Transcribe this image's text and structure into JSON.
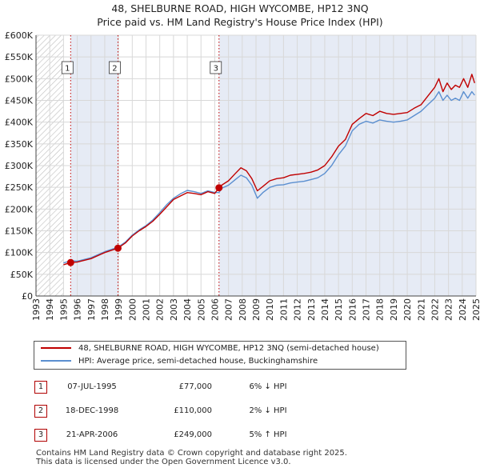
{
  "title": {
    "line1": "48, SHELBURNE ROAD, HIGH WYCOMBE, HP12 3NQ",
    "line2": "Price paid vs. HM Land Registry's House Price Index (HPI)"
  },
  "colors": {
    "price": "#c00000",
    "hpi": "#5b8fd0",
    "shade": "#e6ebf5",
    "hatch": "#bdbdbd",
    "grid": "#d8d8d8",
    "marker_border": "#b00000"
  },
  "chart_data": {
    "type": "line",
    "title": "Price paid vs. HM Land Registry's House Price Index (HPI)",
    "xlim": [
      1993,
      2025
    ],
    "ylim": [
      0,
      600000
    ],
    "yticks": [
      0,
      50000,
      100000,
      150000,
      200000,
      250000,
      300000,
      350000,
      400000,
      450000,
      500000,
      550000,
      600000
    ],
    "ytick_labels": [
      "£0",
      "£50K",
      "£100K",
      "£150K",
      "£200K",
      "£250K",
      "£300K",
      "£350K",
      "£400K",
      "£450K",
      "£500K",
      "£550K",
      "£600K"
    ],
    "xticks": [
      1993,
      1994,
      1995,
      1996,
      1997,
      1998,
      1999,
      2000,
      2001,
      2002,
      2003,
      2004,
      2005,
      2006,
      2007,
      2008,
      2009,
      2010,
      2011,
      2012,
      2013,
      2014,
      2015,
      2016,
      2017,
      2018,
      2019,
      2020,
      2021,
      2022,
      2023,
      2024,
      2025
    ],
    "xtick_labels": [
      "1993",
      "1994",
      "1995",
      "1996",
      "1997",
      "1998",
      "1999",
      "2000",
      "2001",
      "2002",
      "2003",
      "2004",
      "2005",
      "2006",
      "2007",
      "2008",
      "2009",
      "2010",
      "2011",
      "2012",
      "2013",
      "2014",
      "2015",
      "2016",
      "2017",
      "2018",
      "2019",
      "2020",
      "2021",
      "2022",
      "2023",
      "2024",
      "2025"
    ],
    "data_start": 1995.0,
    "series": [
      {
        "name": "48, SHELBURNE ROAD, HIGH WYCOMBE, HP12 3NQ (semi-detached house)",
        "x": [
          1995.0,
          1995.52,
          1996,
          1997,
          1998,
          1998.96,
          1999.5,
          2000,
          2000.5,
          2001,
          2001.5,
          2002,
          2002.5,
          2003,
          2003.5,
          2004,
          2004.5,
          2005,
          2005.5,
          2006,
          2006.31,
          2006.5,
          2007,
          2007.5,
          2007.9,
          2008.3,
          2008.7,
          2009.1,
          2009.5,
          2010,
          2010.5,
          2011,
          2011.5,
          2012,
          2012.5,
          2013,
          2013.5,
          2014,
          2014.5,
          2015,
          2015.5,
          2016,
          2016.5,
          2017,
          2017.5,
          2018,
          2018.5,
          2019,
          2019.5,
          2020,
          2020.5,
          2021,
          2021.5,
          2022,
          2022.3,
          2022.6,
          2022.9,
          2023.2,
          2023.5,
          2023.8,
          2024.1,
          2024.4,
          2024.7,
          2024.9
        ],
        "y": [
          72000,
          77000,
          78000,
          86000,
          100000,
          110000,
          122000,
          138000,
          150000,
          160000,
          172000,
          188000,
          205000,
          222000,
          230000,
          238000,
          236000,
          233000,
          240000,
          236000,
          249000,
          255000,
          265000,
          282000,
          295000,
          288000,
          270000,
          242000,
          252000,
          265000,
          270000,
          272000,
          278000,
          280000,
          282000,
          285000,
          290000,
          300000,
          320000,
          345000,
          360000,
          395000,
          408000,
          420000,
          415000,
          425000,
          420000,
          418000,
          420000,
          422000,
          432000,
          440000,
          460000,
          480000,
          500000,
          470000,
          490000,
          475000,
          485000,
          480000,
          500000,
          480000,
          510000,
          490000
        ]
      },
      {
        "name": "HPI: Average price, semi-detached house, Buckinghamshire",
        "x": [
          1995.0,
          1995.52,
          1996,
          1997,
          1998,
          1998.96,
          1999.5,
          2000,
          2000.5,
          2001,
          2001.5,
          2002,
          2002.5,
          2003,
          2003.5,
          2004,
          2004.5,
          2005,
          2005.5,
          2006,
          2006.31,
          2006.5,
          2007,
          2007.5,
          2007.9,
          2008.3,
          2008.7,
          2009.1,
          2009.5,
          2010,
          2010.5,
          2011,
          2011.5,
          2012,
          2012.5,
          2013,
          2013.5,
          2014,
          2014.5,
          2015,
          2015.5,
          2016,
          2016.5,
          2017,
          2017.5,
          2018,
          2018.5,
          2019,
          2019.5,
          2020,
          2020.5,
          2021,
          2021.5,
          2022,
          2022.3,
          2022.6,
          2022.9,
          2023.2,
          2023.5,
          2023.8,
          2024.1,
          2024.4,
          2024.7,
          2024.9
        ],
        "y": [
          76000,
          81000,
          80000,
          88000,
          102000,
          112000,
          124000,
          140000,
          152000,
          162000,
          175000,
          192000,
          210000,
          225000,
          235000,
          243000,
          240000,
          236000,
          242000,
          238000,
          238000,
          248000,
          255000,
          268000,
          278000,
          272000,
          255000,
          225000,
          238000,
          250000,
          255000,
          256000,
          260000,
          262000,
          264000,
          268000,
          272000,
          282000,
          300000,
          325000,
          345000,
          380000,
          395000,
          402000,
          398000,
          405000,
          402000,
          400000,
          402000,
          405000,
          415000,
          425000,
          440000,
          455000,
          470000,
          450000,
          462000,
          450000,
          455000,
          450000,
          470000,
          455000,
          470000,
          462000
        ]
      }
    ],
    "transactions": [
      {
        "label": "1",
        "x": 1995.52,
        "y": 77000
      },
      {
        "label": "2",
        "x": 1998.96,
        "y": 110000
      },
      {
        "label": "3",
        "x": 2006.31,
        "y": 249000
      }
    ]
  },
  "legend": {
    "price_label": "48, SHELBURNE ROAD, HIGH WYCOMBE, HP12 3NQ (semi-detached house)",
    "hpi_label": "HPI: Average price, semi-detached house, Buckinghamshire"
  },
  "table": [
    {
      "num": "1",
      "date": "07-JUL-1995",
      "price": "£77,000",
      "hpi": "6% ↓ HPI"
    },
    {
      "num": "2",
      "date": "18-DEC-1998",
      "price": "£110,000",
      "hpi": "2% ↓ HPI"
    },
    {
      "num": "3",
      "date": "21-APR-2006",
      "price": "£249,000",
      "hpi": "5% ↑ HPI"
    }
  ],
  "footer": {
    "line1": "Contains HM Land Registry data © Crown copyright and database right 2025.",
    "line2": "This data is licensed under the Open Government Licence v3.0."
  }
}
